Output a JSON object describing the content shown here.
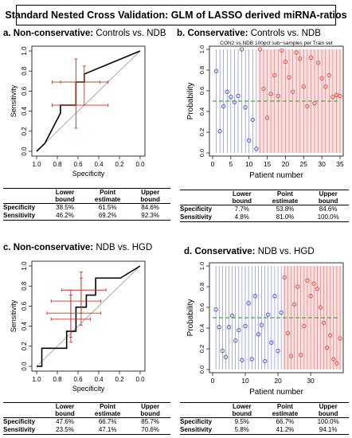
{
  "figure_title": "Standard Nested Cross Validation: GLM of LASSO derived miRNA-ratios",
  "colors": {
    "curve": "#000000",
    "chance": "#999999",
    "ci": "#c0392b",
    "ndb_blue": "#3f4dd0",
    "red": "#d9493f",
    "band": "#f3c9cb",
    "threshold": "#5cb84a",
    "neutral": "#bbbbbb"
  },
  "table_header": {
    "lower": "Lower bound",
    "point": "Point estimate",
    "upper": "Upper bound"
  },
  "panels": {
    "a": {
      "letter": "a.",
      "kind": "Non-conservative:",
      "comparison": "Controls vs. NDB",
      "table": [
        {
          "label": "Specificity",
          "lower": "38.5%",
          "point": "61.5%",
          "upper": "84.6%"
        },
        {
          "label": "Sensitivity",
          "lower": "46.2%",
          "point": "69.2%",
          "upper": "92.3%"
        }
      ]
    },
    "b": {
      "letter": "b.",
      "kind": "Conservative:",
      "comparison": "Controls vs. NDB",
      "table": [
        {
          "label": "Specificity",
          "lower": "7.7%",
          "point": "53.8%",
          "upper": "84.6%"
        },
        {
          "label": "Sensitivity",
          "lower": "4.8%",
          "point": "81.0%",
          "upper": "100.0%"
        }
      ]
    },
    "c": {
      "letter": "c.",
      "kind": "Non-conservative:",
      "comparison": "NDB vs. HGD",
      "table": [
        {
          "label": "Specificity",
          "lower": "47.6%",
          "point": "66.7%",
          "upper": "85.7%"
        },
        {
          "label": "Sensitivity",
          "lower": "23.5%",
          "point": "47.1%",
          "upper": "70.6%"
        }
      ]
    },
    "d": {
      "letter": "d.",
      "kind": "Conservative:",
      "comparison": "NDB vs. HGD",
      "table": [
        {
          "label": "Specificity",
          "lower": "9.5%",
          "point": "66.7%",
          "upper": "100.0%"
        },
        {
          "label": "Sensitivity",
          "lower": "5.8%",
          "point": "41.2%",
          "upper": "94.1%"
        }
      ]
    }
  },
  "chart_data": [
    {
      "panel": "a",
      "type": "line",
      "xlabel": "Specificity",
      "ylabel": "Sensitivity",
      "xlim": [
        1.0,
        0.0
      ],
      "ylim": [
        0.0,
        1.0
      ],
      "xticks": [
        "1.0",
        "0.8",
        "0.6",
        "0.4",
        "0.2",
        "0.0"
      ],
      "yticks": [
        "0.0",
        "0.2",
        "0.4",
        "0.6",
        "0.8",
        "1.0"
      ],
      "roc": {
        "x": [
          1.0,
          0.92,
          0.77,
          0.77,
          0.62,
          0.62,
          0.54,
          0.54,
          0.0
        ],
        "y": [
          0.0,
          0.08,
          0.38,
          0.46,
          0.46,
          0.69,
          0.69,
          0.77,
          1.0
        ]
      },
      "ci_points": [
        {
          "x": 0.62,
          "y": 0.69,
          "x_lo": 0.39,
          "x_hi": 0.85,
          "y_lo": 0.46,
          "y_hi": 0.92
        },
        {
          "x": 0.54,
          "y": 0.69,
          "x_lo": 0.31,
          "x_hi": 0.77,
          "y_lo": 0.46,
          "y_hi": 0.85
        },
        {
          "x": 0.62,
          "y": 0.46,
          "x_lo": 0.31,
          "x_hi": 0.85,
          "y_lo": 0.23,
          "y_hi": 0.69
        }
      ]
    },
    {
      "panel": "b",
      "type": "scatter",
      "title": "CON2 vs.NDB 100pct sub−samples per Train set",
      "xlabel": "Patient number",
      "ylabel": "Probability",
      "xlim": [
        0,
        35
      ],
      "ylim": [
        0.0,
        1.0
      ],
      "xticks": [
        "0",
        "5",
        "10",
        "15",
        "20",
        "25",
        "30",
        "35"
      ],
      "yticks": [
        "0.0",
        "0.2",
        "0.4",
        "0.6",
        "0.8",
        "1.0"
      ],
      "threshold": 0.5,
      "groups": [
        {
          "color": "ndb_blue",
          "x_start": 1,
          "values": [
            0.79,
            0.21,
            0.45,
            0.59,
            0.54,
            0.49,
            0.55,
            1.0,
            0.44,
            0.12,
            0.32,
            0.04
          ]
        },
        {
          "color": "red",
          "x_start": 13,
          "values": [
            1.0,
            0.62,
            0.34,
            0.57,
            0.75,
            0.55,
            0.99,
            0.88,
            0.73,
            0.59,
            0.97,
            0.91,
            0.64,
            0.45,
            0.92,
            0.48,
            0.87,
            0.72,
            0.64,
            0.75,
            0.54,
            0.56,
            0.55
          ]
        }
      ]
    },
    {
      "panel": "c",
      "type": "line",
      "xlabel": "Specificity",
      "ylabel": "Sensitivity",
      "xlim": [
        1.0,
        0.0
      ],
      "ylim": [
        0.0,
        1.0
      ],
      "xticks": [
        "1.0",
        "0.8",
        "0.6",
        "0.4",
        "0.2",
        "0.0"
      ],
      "yticks": [
        "0.0",
        "0.2",
        "0.4",
        "0.6",
        "0.8",
        "1.0"
      ],
      "roc": {
        "x": [
          1.0,
          0.95,
          0.95,
          0.71,
          0.71,
          0.62,
          0.62,
          0.52,
          0.52,
          0.43,
          0.43,
          0.19,
          0.0
        ],
        "y": [
          0.0,
          0.0,
          0.18,
          0.18,
          0.35,
          0.35,
          0.59,
          0.59,
          0.71,
          0.71,
          0.88,
          0.88,
          1.0
        ]
      },
      "ci_points": [
        {
          "x": 0.67,
          "y": 0.47,
          "x_lo": 0.48,
          "x_hi": 0.86,
          "y_lo": 0.24,
          "y_hi": 0.71
        },
        {
          "x": 0.57,
          "y": 0.65,
          "x_lo": 0.38,
          "x_hi": 0.86,
          "y_lo": 0.41,
          "y_hi": 0.88
        },
        {
          "x": 0.57,
          "y": 0.76,
          "x_lo": 0.33,
          "x_hi": 0.76,
          "y_lo": 0.53,
          "y_hi": 0.94
        },
        {
          "x": 0.67,
          "y": 0.53,
          "x_lo": 0.38,
          "x_hi": 0.9,
          "y_lo": 0.29,
          "y_hi": 0.76
        }
      ]
    },
    {
      "panel": "d",
      "type": "scatter",
      "xlabel": "Patient number",
      "ylabel": "Probability",
      "xlim": [
        0,
        39
      ],
      "ylim": [
        0.0,
        1.0
      ],
      "xticks": [
        "0",
        "10",
        "20",
        "30"
      ],
      "yticks": [
        "0.0",
        "0.2",
        "0.4",
        "0.6",
        "0.8",
        "1.0"
      ],
      "threshold": 0.5,
      "groups": [
        {
          "color": "ndb_blue",
          "x_start": 1,
          "values": [
            0.58,
            0.41,
            0.18,
            0.12,
            0.41,
            0.52,
            0.28,
            0.38,
            0.09,
            0.42,
            0.64,
            0.1,
            0.71,
            0.34,
            0.43,
            0.08,
            0.53,
            0.26,
            0.71,
            0.18,
            0.55
          ]
        },
        {
          "color": "red",
          "x_start": 22,
          "values": [
            0.89,
            0.35,
            0.13,
            0.63,
            0.8,
            0.14,
            0.42,
            0.86,
            0.71,
            0.83,
            0.78,
            0.6,
            0.45,
            0.21,
            0.33,
            0.1,
            0.06,
            0.3
          ]
        }
      ]
    }
  ]
}
